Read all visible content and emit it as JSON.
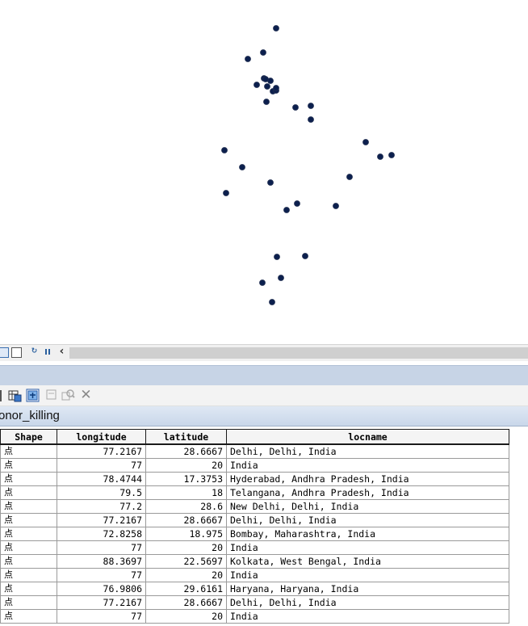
{
  "map": {
    "point_color": "#0b1f4e",
    "point_outline": "#1e2c50",
    "points": [
      {
        "id": 1
      },
      {
        "id": 2
      },
      {
        "id": 3
      },
      {
        "id": 4
      },
      {
        "id": 5
      },
      {
        "id": 6
      },
      {
        "id": 7
      },
      {
        "id": 8
      },
      {
        "id": 9
      },
      {
        "id": 10
      },
      {
        "id": 11
      },
      {
        "id": 12
      },
      {
        "id": 13
      },
      {
        "id": 14
      },
      {
        "id": 15
      },
      {
        "id": 16
      },
      {
        "id": 17
      },
      {
        "id": 18
      },
      {
        "id": 19
      },
      {
        "id": 20
      },
      {
        "id": 21
      },
      {
        "id": 22
      },
      {
        "id": 23
      },
      {
        "id": 24
      },
      {
        "id": 25
      },
      {
        "id": 26
      },
      {
        "id": 27
      },
      {
        "id": 28
      },
      {
        "id": 29
      },
      {
        "id": 30
      },
      {
        "id": 31
      }
    ]
  },
  "map_statusbar": {
    "icons": [
      "data-view-icon",
      "layout-view-icon",
      "refresh-icon",
      "pause-icon",
      "scroll-left-icon"
    ],
    "scroll_left_glyph": "‹"
  },
  "table_toolbar": {
    "close_glyph": "✕"
  },
  "table": {
    "title": "onor_killing",
    "columns": [
      "Shape",
      "longitude",
      "latitude",
      "locname"
    ],
    "rows": [
      {
        "shape": "点",
        "longitude": "77.2167",
        "latitude": "28.6667",
        "locname": "Delhi, Delhi, India"
      },
      {
        "shape": "点",
        "longitude": "77",
        "latitude": "20",
        "locname": "India"
      },
      {
        "shape": "点",
        "longitude": "78.4744",
        "latitude": "17.3753",
        "locname": "Hyderabad, Andhra Pradesh, India"
      },
      {
        "shape": "点",
        "longitude": "79.5",
        "latitude": "18",
        "locname": "Telangana, Andhra Pradesh, India"
      },
      {
        "shape": "点",
        "longitude": "77.2",
        "latitude": "28.6",
        "locname": "New Delhi, Delhi, India"
      },
      {
        "shape": "点",
        "longitude": "77.2167",
        "latitude": "28.6667",
        "locname": "Delhi, Delhi, India"
      },
      {
        "shape": "点",
        "longitude": "72.8258",
        "latitude": "18.975",
        "locname": "Bombay, Maharashtra, India"
      },
      {
        "shape": "点",
        "longitude": "77",
        "latitude": "20",
        "locname": "India"
      },
      {
        "shape": "点",
        "longitude": "88.3697",
        "latitude": "22.5697",
        "locname": "Kolkata, West Bengal, India"
      },
      {
        "shape": "点",
        "longitude": "77",
        "latitude": "20",
        "locname": "India"
      },
      {
        "shape": "点",
        "longitude": "76.9806",
        "latitude": "29.6161",
        "locname": "Haryana, Haryana, India"
      },
      {
        "shape": "点",
        "longitude": "77.2167",
        "latitude": "28.6667",
        "locname": "Delhi, Delhi, India"
      },
      {
        "shape": "点",
        "longitude": "77",
        "latitude": "20",
        "locname": "India"
      }
    ]
  }
}
